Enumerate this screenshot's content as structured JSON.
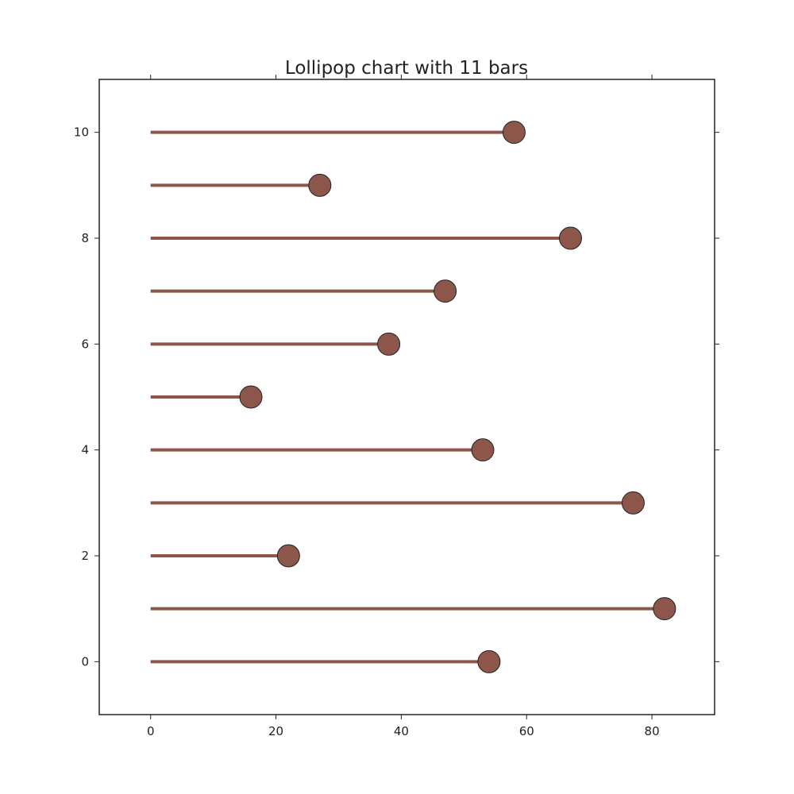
{
  "chart_data": {
    "type": "lollipop",
    "orientation": "horizontal",
    "title": "Lollipop chart with 11 bars",
    "xlabel": "",
    "ylabel": "",
    "xlim": [
      -8.2,
      90
    ],
    "ylim": [
      -1,
      11
    ],
    "xticks": [
      0,
      20,
      40,
      60,
      80
    ],
    "yticks": [
      0,
      2,
      4,
      6,
      8,
      10
    ],
    "grid": false,
    "y": [
      0,
      1,
      2,
      3,
      4,
      5,
      6,
      7,
      8,
      9,
      10
    ],
    "values": [
      54,
      82,
      22,
      77,
      53,
      16,
      38,
      47,
      67,
      27,
      58
    ],
    "color": "#8c564b",
    "marker_edge_color": "#222222",
    "axis_color": "#222222"
  }
}
